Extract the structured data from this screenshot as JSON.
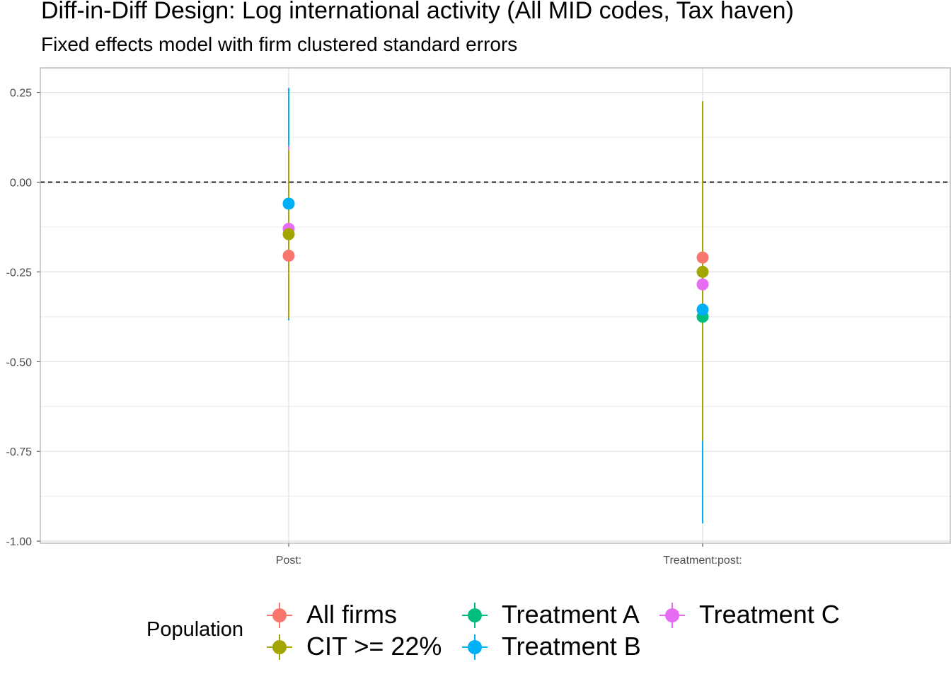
{
  "chart_data": {
    "type": "scatter",
    "title": "Diff-in-Diff Design: Log international activity (All MID codes, Tax haven)",
    "subtitle": "Fixed effects model with firm clustered standard errors",
    "xlabel": "",
    "ylabel": "",
    "categories": [
      "Post:",
      "Treatment:post:"
    ],
    "ylim": [
      -1.0,
      0.32
    ],
    "yticks": [
      0.25,
      0.0,
      -0.25,
      -0.5,
      -0.75,
      -1.0
    ],
    "ytick_labels": [
      "0.25",
      "0.00",
      "-0.25",
      "-0.50",
      "-0.75",
      "-1.00"
    ],
    "reference_line": 0,
    "grid": true,
    "legend_position": "bottom",
    "legend_title": "Population",
    "series": [
      {
        "name": "All firms",
        "color": "#F8766D",
        "estimates": [
          -0.205,
          -0.21
        ],
        "lower": [
          -0.3,
          -0.3
        ],
        "upper": [
          -0.11,
          -0.12
        ]
      },
      {
        "name": "CIT >= 22%",
        "color": "#A3A500",
        "estimates": [
          -0.145,
          -0.25
        ],
        "lower": [
          -0.38,
          -0.72
        ],
        "upper": [
          0.09,
          0.225
        ]
      },
      {
        "name": "Treatment A",
        "color": "#00BF7D",
        "estimates": [
          -0.06,
          -0.375
        ],
        "lower": [
          -0.18,
          -0.95
        ],
        "upper": [
          0.06,
          0.2
        ]
      },
      {
        "name": "Treatment B",
        "color": "#00B0F6",
        "estimates": [
          -0.06,
          -0.355
        ],
        "lower": [
          -0.385,
          -0.95
        ],
        "upper": [
          0.262,
          0.21
        ]
      },
      {
        "name": "Treatment C",
        "color": "#E76BF3",
        "estimates": [
          -0.13,
          -0.285
        ],
        "lower": [
          -0.33,
          -0.72
        ],
        "upper": [
          0.1,
          0.15
        ]
      }
    ]
  }
}
